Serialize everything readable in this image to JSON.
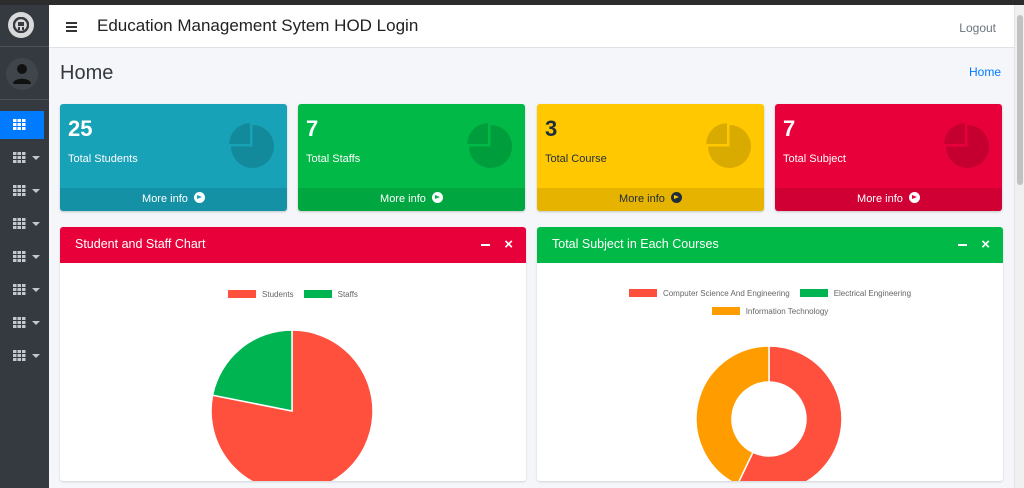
{
  "app": {
    "title": "Education Management Sytem HOD Login",
    "logout_label": "Logout"
  },
  "page": {
    "title": "Home",
    "breadcrumb": "Home"
  },
  "sidebar": {
    "items": [
      {
        "icon": "grid-icon",
        "active": true,
        "has_caret": false
      },
      {
        "icon": "grid-icon",
        "active": false,
        "has_caret": true
      },
      {
        "icon": "grid-icon",
        "active": false,
        "has_caret": true
      },
      {
        "icon": "grid-icon",
        "active": false,
        "has_caret": true
      },
      {
        "icon": "grid-icon",
        "active": false,
        "has_caret": true
      },
      {
        "icon": "grid-icon",
        "active": false,
        "has_caret": true
      },
      {
        "icon": "grid-icon",
        "active": false,
        "has_caret": true
      },
      {
        "icon": "grid-icon",
        "active": false,
        "has_caret": true
      }
    ]
  },
  "stats": [
    {
      "value": "25",
      "label": "Total Students",
      "more": "More info",
      "color": "#17a2b8",
      "text_color": "#ffffff",
      "icon": "pie-chart-icon"
    },
    {
      "value": "7",
      "label": "Total Staffs",
      "more": "More info",
      "color": "#00b947",
      "text_color": "#ffffff",
      "icon": "pie-chart-icon"
    },
    {
      "value": "3",
      "label": "Total Course",
      "more": "More info",
      "color": "#ffc800",
      "text_color": "#1f2d3d",
      "icon": "pie-chart-icon"
    },
    {
      "value": "7",
      "label": "Total Subject",
      "more": "More info",
      "color": "#e8003a",
      "text_color": "#ffffff",
      "icon": "pie-chart-icon"
    }
  ],
  "cards": {
    "left": {
      "title": "Student and Staff Chart",
      "header_color": "#e8003a"
    },
    "right": {
      "title": "Total Subject in Each Courses",
      "header_color": "#00b947"
    }
  },
  "chart_data": [
    {
      "type": "pie",
      "title": "Student and Staff Chart",
      "labels": [
        "Students",
        "Staffs"
      ],
      "values": [
        25,
        7
      ],
      "colors": [
        "#ff4f3d",
        "#00b451"
      ],
      "legend": "top"
    },
    {
      "type": "doughnut",
      "title": "Total Subject in Each Courses",
      "labels": [
        "Computer Science And Engineering",
        "Electrical Engineering",
        "Information Technology"
      ],
      "values": [
        4,
        0,
        3
      ],
      "colors": [
        "#ff4f3d",
        "#00b451",
        "#ff9d00"
      ],
      "legend": "top"
    }
  ]
}
